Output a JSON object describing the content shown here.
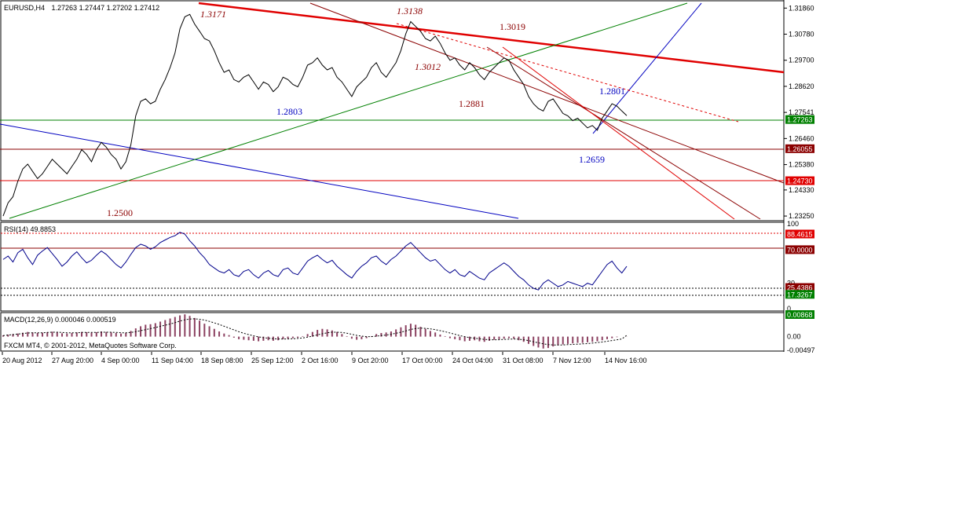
{
  "window": {
    "title": "EURUSD,H4",
    "ohlc": "1.27263 1.27447 1.27202 1.27412"
  },
  "colors": {
    "price": "#000000",
    "red_line": "#e00000",
    "dark_red": "#8b0000",
    "green_line": "#008000",
    "blue_line": "#0000c0",
    "rsi_line": "#00008b",
    "macd_hist": "#8b4060"
  },
  "chart_data": [
    {
      "type": "line",
      "name": "EURUSD,H4 price",
      "ylim": [
        1.2309,
        1.3213
      ],
      "ohlc_label": "1.27263 1.27447 1.27202 1.27412",
      "y_ticks": [
        "1.31860",
        "1.30780",
        "1.29700",
        "1.28620",
        "1.27541",
        "1.26460",
        "1.25380",
        "1.24330",
        "1.23250"
      ],
      "price_tags": [
        {
          "text": "1.27263",
          "value": 1.27263,
          "color": "#008000"
        },
        {
          "text": "1.26055",
          "value": 1.26055,
          "color": "#8b0000"
        },
        {
          "text": "1.24730",
          "value": 1.2473,
          "color": "#e00000"
        }
      ],
      "annotations": [
        {
          "text": "1.3171",
          "color": "#8b0000",
          "italic": true
        },
        {
          "text": "1.3138",
          "color": "#8b0000",
          "italic": true
        },
        {
          "text": "1.3019",
          "color": "#8b0000",
          "italic": false
        },
        {
          "text": "1.3012",
          "color": "#8b0000",
          "italic": true
        },
        {
          "text": "1.2881",
          "color": "#8b0000",
          "italic": false
        },
        {
          "text": "1.2801",
          "color": "#0000c0",
          "italic": false
        },
        {
          "text": "1.2803",
          "color": "#0000c0",
          "italic": false
        },
        {
          "text": "1.2659",
          "color": "#0000c0",
          "italic": false
        },
        {
          "text": "1.2500",
          "color": "#8b0000",
          "italic": false
        }
      ],
      "close_series": [
        1.2325,
        1.238,
        1.2405,
        1.247,
        1.252,
        1.254,
        1.251,
        1.248,
        1.25,
        1.253,
        1.256,
        1.254,
        1.252,
        1.25,
        1.253,
        1.256,
        1.26,
        1.258,
        1.255,
        1.26,
        1.263,
        1.261,
        1.258,
        1.256,
        1.252,
        1.255,
        1.262,
        1.274,
        1.28,
        1.281,
        1.279,
        1.28,
        1.285,
        1.289,
        1.294,
        1.3,
        1.31,
        1.315,
        1.316,
        1.312,
        1.309,
        1.306,
        1.305,
        1.301,
        1.296,
        1.292,
        1.293,
        1.289,
        1.288,
        1.29,
        1.291,
        1.288,
        1.285,
        1.288,
        1.287,
        1.284,
        1.286,
        1.29,
        1.289,
        1.287,
        1.286,
        1.29,
        1.295,
        1.296,
        1.298,
        1.295,
        1.293,
        1.294,
        1.29,
        1.288,
        1.285,
        1.282,
        1.286,
        1.288,
        1.29,
        1.294,
        1.296,
        1.292,
        1.29,
        1.293,
        1.296,
        1.301,
        1.308,
        1.313,
        1.311,
        1.309,
        1.306,
        1.305,
        1.307,
        1.304,
        1.3,
        1.297,
        1.298,
        1.295,
        1.293,
        1.296,
        1.294,
        1.291,
        1.289,
        1.292,
        1.294,
        1.296,
        1.298,
        1.297,
        1.293,
        1.29,
        1.287,
        1.282,
        1.279,
        1.277,
        1.276,
        1.28,
        1.281,
        1.278,
        1.275,
        1.274,
        1.272,
        1.273,
        1.271,
        1.269,
        1.27,
        1.268,
        1.273,
        1.276,
        1.279,
        1.278,
        1.276,
        1.2741
      ],
      "x_ticks": [
        "20 Aug 2012",
        "27 Aug 20:00",
        "4 Sep 00:00",
        "11 Sep 04:00",
        "18 Sep 08:00",
        "25 Sep 12:00",
        "2 Oct 16:00",
        "9 Oct 20:00",
        "17 Oct 00:00",
        "24 Oct 04:00",
        "31 Oct 08:00",
        "7 Nov 12:00",
        "14 Nov 16:00"
      ]
    },
    {
      "type": "line",
      "name": "RSI(14)",
      "label": "RSI(14) 49.8853",
      "ylim": [
        0,
        100
      ],
      "y_ticks": [
        "100",
        "30",
        "0"
      ],
      "levels": [
        {
          "text": "88.4615",
          "value": 88.4615,
          "color": "#e00000"
        },
        {
          "text": "70.0000",
          "value": 70.0,
          "color": "#8b0000"
        },
        {
          "text": "25.4386",
          "value": 25.4386,
          "color": "#8b0000"
        },
        {
          "text": "17.3267",
          "value": 17.3267,
          "color": "#008000"
        }
      ],
      "values": [
        58,
        62,
        55,
        66,
        70,
        60,
        52,
        63,
        68,
        72,
        65,
        58,
        50,
        55,
        62,
        67,
        60,
        54,
        57,
        63,
        68,
        64,
        58,
        52,
        48,
        55,
        64,
        72,
        76,
        74,
        70,
        73,
        78,
        81,
        84,
        86,
        90,
        88,
        80,
        74,
        66,
        60,
        52,
        48,
        44,
        42,
        46,
        40,
        38,
        44,
        46,
        40,
        36,
        42,
        45,
        40,
        38,
        46,
        48,
        42,
        40,
        48,
        56,
        60,
        63,
        58,
        54,
        57,
        50,
        45,
        40,
        36,
        44,
        50,
        54,
        60,
        62,
        56,
        52,
        58,
        62,
        68,
        74,
        78,
        72,
        66,
        60,
        56,
        58,
        52,
        46,
        42,
        46,
        40,
        38,
        44,
        40,
        36,
        34,
        42,
        46,
        50,
        54,
        50,
        44,
        38,
        34,
        28,
        24,
        22,
        30,
        34,
        30,
        26,
        28,
        32,
        30,
        28,
        26,
        30,
        28,
        36,
        44,
        52,
        56,
        48,
        42,
        49.8853
      ]
    },
    {
      "type": "bar",
      "name": "MACD(12,26,9)",
      "label": "MACD(12,26,9) 0.000046 0.000519",
      "y_ticks": [
        "0.00"
      ],
      "tags": [
        {
          "text": "0.00868",
          "value": 0.00868,
          "color": "#008000"
        },
        {
          "text": "-0.00497",
          "value": -0.00497,
          "color": "#000000"
        }
      ],
      "ylim": [
        -0.00497,
        0.00868
      ],
      "values": [
        0.0005,
        0.0008,
        0.001,
        0.0012,
        0.0015,
        0.0018,
        0.0016,
        0.0014,
        0.0015,
        0.0017,
        0.0019,
        0.0016,
        0.0013,
        0.0012,
        0.0014,
        0.0016,
        0.0018,
        0.0017,
        0.0015,
        0.0017,
        0.002,
        0.0018,
        0.0016,
        0.0014,
        0.0012,
        0.0014,
        0.0022,
        0.0032,
        0.004,
        0.0046,
        0.0048,
        0.0052,
        0.0058,
        0.0064,
        0.007,
        0.0076,
        0.0082,
        0.0086,
        0.008,
        0.0072,
        0.0062,
        0.005,
        0.004,
        0.003,
        0.002,
        0.0012,
        0.0006,
        -0.0004,
        -0.001,
        -0.0012,
        -0.0014,
        -0.0016,
        -0.0018,
        -0.0016,
        -0.0014,
        -0.0016,
        -0.0014,
        -0.001,
        -0.0008,
        -0.0006,
        -0.0004,
        0.0002,
        0.001,
        0.0018,
        0.0026,
        0.003,
        0.0028,
        0.0024,
        0.0018,
        0.001,
        0.0002,
        -0.0008,
        -0.0012,
        -0.001,
        -0.0006,
        0.0002,
        0.001,
        0.0014,
        0.0016,
        0.002,
        0.0028,
        0.0036,
        0.0044,
        0.005,
        0.0046,
        0.0038,
        0.003,
        0.0022,
        0.0016,
        0.0008,
        0.0002,
        -0.0006,
        -0.001,
        -0.0014,
        -0.0018,
        -0.0016,
        -0.0014,
        -0.0018,
        -0.002,
        -0.0016,
        -0.0012,
        -0.001,
        -0.0008,
        -0.0006,
        -0.0008,
        -0.0014,
        -0.002,
        -0.0028,
        -0.0036,
        -0.0042,
        -0.0046,
        -0.0044,
        -0.0038,
        -0.0034,
        -0.003,
        -0.0028,
        -0.0026,
        -0.0024,
        -0.0024,
        -0.0022,
        -0.002,
        -0.0018,
        -0.0014,
        -0.001,
        -0.0006,
        -0.0002,
        0.0,
        4.6e-05
      ],
      "signal": [
        0.0004,
        0.0006,
        0.0008,
        0.001,
        0.0012,
        0.0014,
        0.0015,
        0.0015,
        0.0015,
        0.0016,
        0.0017,
        0.0017,
        0.0016,
        0.0015,
        0.0015,
        0.0015,
        0.0016,
        0.0016,
        0.0016,
        0.0016,
        0.0017,
        0.0017,
        0.0017,
        0.0016,
        0.0015,
        0.0015,
        0.0016,
        0.0019,
        0.0023,
        0.0027,
        0.0031,
        0.0035,
        0.004,
        0.0044,
        0.0049,
        0.0054,
        0.006,
        0.0065,
        0.0068,
        0.0069,
        0.0067,
        0.0064,
        0.0059,
        0.0053,
        0.0047,
        0.004,
        0.0033,
        0.0026,
        0.0019,
        0.0013,
        0.0008,
        0.0003,
        -0.0001,
        -0.0004,
        -0.0006,
        -0.0008,
        -0.0009,
        -0.0009,
        -0.0009,
        -0.0008,
        -0.0007,
        -0.0005,
        -0.0002,
        0.0002,
        0.0007,
        0.0011,
        0.0015,
        0.0017,
        0.0017,
        0.0016,
        0.0013,
        0.0009,
        0.0005,
        0.0002,
        0.0,
        0.0,
        0.0002,
        0.0004,
        0.0006,
        0.0009,
        0.0013,
        0.0017,
        0.0022,
        0.0028,
        0.0031,
        0.0033,
        0.0032,
        0.003,
        0.0027,
        0.0023,
        0.0019,
        0.0014,
        0.0009,
        0.0004,
        0.0,
        -0.0004,
        -0.0006,
        -0.0008,
        -0.0011,
        -0.0012,
        -0.0012,
        -0.0012,
        -0.0011,
        -0.001,
        -0.0009,
        -0.001,
        -0.0012,
        -0.0015,
        -0.002,
        -0.0024,
        -0.0028,
        -0.0031,
        -0.0032,
        -0.0032,
        -0.0032,
        -0.0031,
        -0.003,
        -0.0029,
        -0.0028,
        -0.0027,
        -0.0025,
        -0.0023,
        -0.0021,
        -0.0018,
        -0.0015,
        -0.0012,
        -0.0009,
        0.000519
      ]
    }
  ],
  "footer": {
    "copyright": "FXCM MT4, © 2001-2012, MetaQuotes Software Corp."
  }
}
